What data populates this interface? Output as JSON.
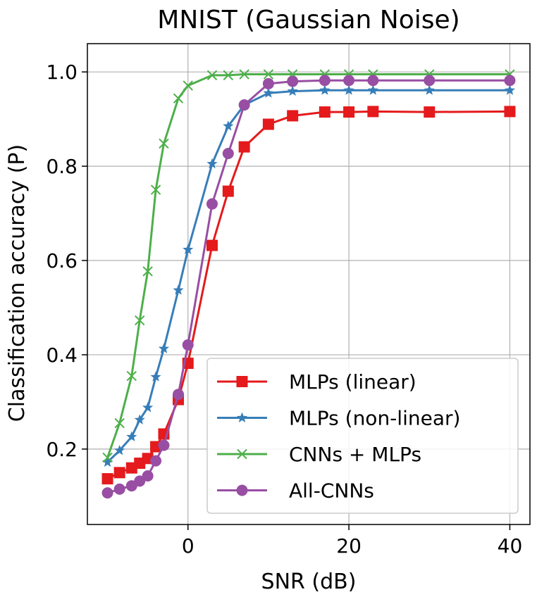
{
  "chart_data": {
    "type": "line",
    "title": "MNIST (Gaussian Noise)",
    "xlabel": "SNR (dB)",
    "ylabel": "Classification accuracy (P)",
    "xlim": [
      -12.5,
      42.5
    ],
    "ylim": [
      0.04,
      1.06
    ],
    "xticks": [
      0,
      20,
      40
    ],
    "yticks": [
      0.2,
      0.4,
      0.6,
      0.8,
      1.0
    ],
    "xtick_labels": [
      "0",
      "20",
      "40"
    ],
    "ytick_labels": [
      "0.2",
      "0.4",
      "0.6",
      "0.8",
      "1.0"
    ],
    "grid": true,
    "legend_position": "lower-right",
    "series": [
      {
        "name": "MLPs (linear)",
        "color": "#e41a1c",
        "marker": "square",
        "x": [
          -10,
          -8.5,
          -7,
          -6,
          -5,
          -4,
          -3,
          -1.2,
          0,
          3,
          5,
          7,
          10,
          13,
          17,
          20,
          23,
          30,
          40
        ],
        "y": [
          0.137,
          0.15,
          0.16,
          0.17,
          0.18,
          0.205,
          0.232,
          0.305,
          0.382,
          0.632,
          0.747,
          0.841,
          0.889,
          0.907,
          0.915,
          0.915,
          0.916,
          0.915,
          0.916
        ]
      },
      {
        "name": "MLPs (non-linear)",
        "color": "#377eb8",
        "marker": "star",
        "x": [
          -10,
          -8.5,
          -7,
          -6,
          -5,
          -4,
          -3,
          -1.2,
          0,
          3,
          5,
          7,
          10,
          13,
          17,
          20,
          23,
          30,
          40
        ],
        "y": [
          0.172,
          0.197,
          0.226,
          0.262,
          0.288,
          0.353,
          0.413,
          0.537,
          0.623,
          0.805,
          0.885,
          0.93,
          0.955,
          0.959,
          0.961,
          0.961,
          0.961,
          0.961,
          0.961
        ]
      },
      {
        "name": "CNNs + MLPs",
        "color": "#4daf4a",
        "marker": "x",
        "x": [
          -10,
          -8.5,
          -7,
          -6,
          -5,
          -4,
          -3,
          -1.2,
          0,
          3,
          5,
          7,
          10,
          13,
          17,
          20,
          23,
          30,
          40
        ],
        "y": [
          0.182,
          0.255,
          0.355,
          0.473,
          0.577,
          0.75,
          0.848,
          0.944,
          0.971,
          0.993,
          0.993,
          0.995,
          0.995,
          0.995,
          0.995,
          0.995,
          0.995,
          0.995,
          0.995
        ]
      },
      {
        "name": "All-CNNs",
        "color": "#984ea3",
        "marker": "circle",
        "x": [
          -10,
          -8.5,
          -7,
          -6,
          -5,
          -4,
          -3,
          -1.2,
          0,
          3,
          5,
          7,
          10,
          13,
          17,
          20,
          23,
          30,
          40
        ],
        "y": [
          0.107,
          0.115,
          0.122,
          0.132,
          0.143,
          0.175,
          0.208,
          0.316,
          0.421,
          0.72,
          0.827,
          0.93,
          0.975,
          0.98,
          0.982,
          0.982,
          0.982,
          0.982,
          0.982
        ]
      }
    ]
  }
}
